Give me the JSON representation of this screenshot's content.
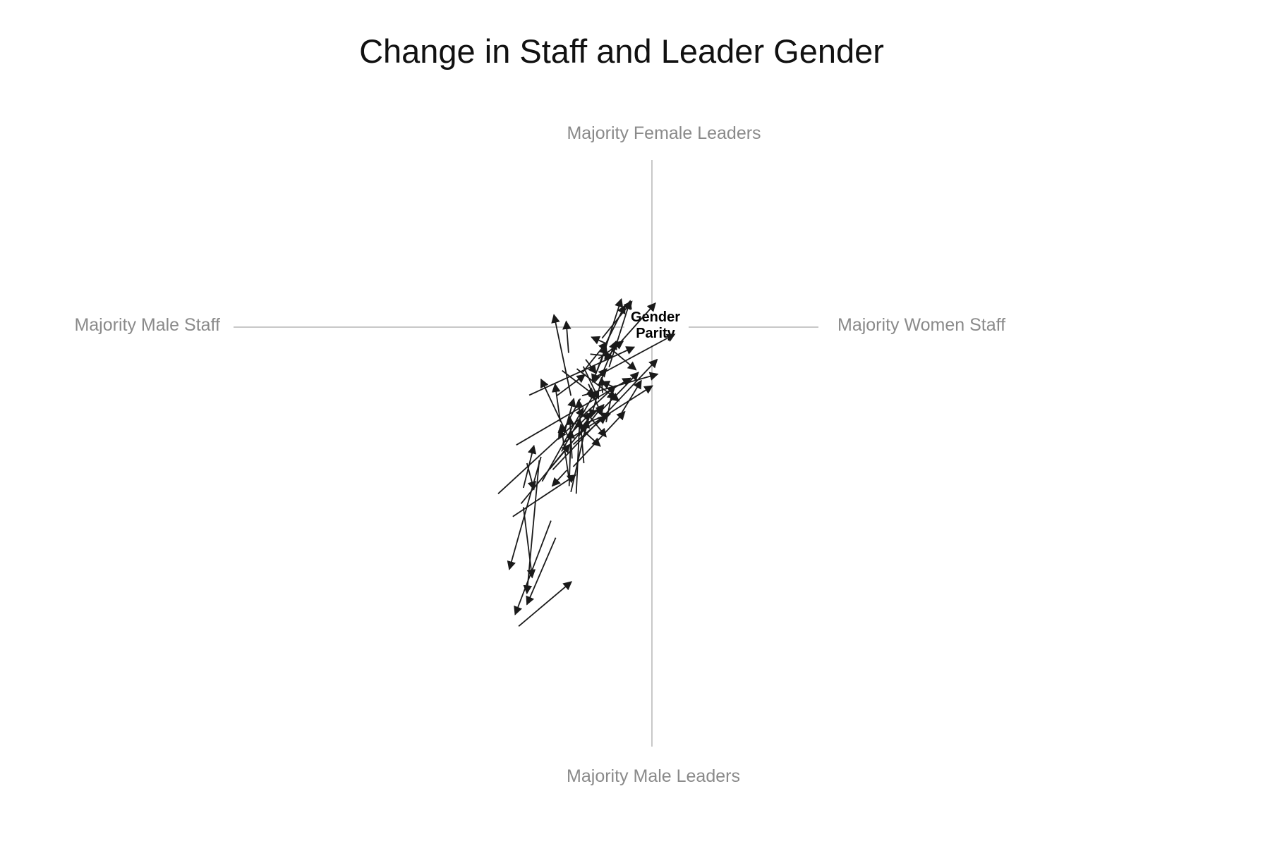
{
  "chart_data": {
    "type": "arrow-scatter",
    "title": "Change in Staff and Leader Gender",
    "center_label": [
      "Gender",
      "Parity"
    ],
    "axis_labels": {
      "top": "Majority Female Leaders",
      "bottom": "Majority Male Leaders",
      "left": "Majority Male Staff",
      "right": "Majority Women Staff"
    },
    "x_range": [
      -0.5,
      0.5
    ],
    "y_range": [
      -0.5,
      0.5
    ],
    "grid": false,
    "colors": {
      "arrows": "#1a1a1a",
      "axes": "#c8c8c8",
      "axis_labels": "#8a8a8a"
    },
    "arrows": [
      {
        "from": [
          -0.227,
          -0.51
        ],
        "to": [
          -0.137,
          -0.434
        ]
      },
      {
        "from": [
          -0.172,
          -0.33
        ],
        "to": [
          -0.233,
          -0.49
        ]
      },
      {
        "from": [
          -0.164,
          -0.359
        ],
        "to": [
          -0.213,
          -0.473
        ]
      },
      {
        "from": [
          -0.219,
          -0.307
        ],
        "to": [
          -0.204,
          -0.427
        ]
      },
      {
        "from": [
          -0.189,
          -0.221
        ],
        "to": [
          -0.243,
          -0.413
        ]
      },
      {
        "from": [
          -0.192,
          -0.227
        ],
        "to": [
          -0.213,
          -0.454
        ]
      },
      {
        "from": [
          -0.219,
          -0.274
        ],
        "to": [
          -0.201,
          -0.202
        ]
      },
      {
        "from": [
          -0.213,
          -0.232
        ],
        "to": [
          -0.201,
          -0.277
        ]
      },
      {
        "from": [
          -0.237,
          -0.323
        ],
        "to": [
          -0.13,
          -0.252
        ]
      },
      {
        "from": [
          -0.223,
          -0.301
        ],
        "to": [
          -0.14,
          -0.2
        ]
      },
      {
        "from": [
          -0.187,
          -0.263
        ],
        "to": [
          -0.117,
          -0.138
        ]
      },
      {
        "from": [
          -0.174,
          -0.242
        ],
        "to": [
          -0.11,
          -0.165
        ]
      },
      {
        "from": [
          -0.154,
          -0.212
        ],
        "to": [
          -0.096,
          -0.109
        ]
      },
      {
        "from": [
          -0.145,
          -0.244
        ],
        "to": [
          -0.17,
          -0.271
        ]
      },
      {
        "from": [
          -0.142,
          -0.254
        ],
        "to": [
          -0.155,
          -0.166
        ]
      },
      {
        "from": [
          -0.141,
          -0.271
        ],
        "to": [
          -0.138,
          -0.176
        ]
      },
      {
        "from": [
          -0.136,
          -0.224
        ],
        "to": [
          -0.14,
          -0.153
        ]
      },
      {
        "from": [
          -0.138,
          -0.281
        ],
        "to": [
          -0.11,
          -0.158
        ]
      },
      {
        "from": [
          -0.129,
          -0.284
        ],
        "to": [
          -0.123,
          -0.157
        ]
      },
      {
        "from": [
          -0.116,
          -0.232
        ],
        "to": [
          -0.125,
          -0.124
        ]
      },
      {
        "from": [
          -0.162,
          -0.117
        ],
        "to": [
          -0.114,
          -0.081
        ]
      },
      {
        "from": [
          -0.156,
          -0.162
        ],
        "to": [
          -0.165,
          -0.097
        ]
      },
      {
        "from": [
          -0.143,
          -0.186
        ],
        "to": [
          -0.189,
          -0.089
        ]
      },
      {
        "from": [
          -0.122,
          -0.122
        ],
        "to": [
          -0.159,
          -0.191
        ]
      },
      {
        "from": [
          -0.148,
          -0.176
        ],
        "to": [
          -0.133,
          -0.122
        ]
      },
      {
        "from": [
          -0.14,
          -0.183
        ],
        "to": [
          -0.104,
          -0.146
        ]
      },
      {
        "from": [
          -0.134,
          -0.2
        ],
        "to": [
          -0.078,
          -0.151
        ]
      },
      {
        "from": [
          -0.132,
          -0.163
        ],
        "to": [
          -0.088,
          -0.203
        ]
      },
      {
        "from": [
          -0.124,
          -0.185
        ],
        "to": [
          -0.082,
          -0.132
        ]
      },
      {
        "from": [
          -0.113,
          -0.144
        ],
        "to": [
          -0.078,
          -0.187
        ]
      },
      {
        "from": [
          -0.114,
          -0.164
        ],
        "to": [
          -0.071,
          -0.148
        ]
      },
      {
        "from": [
          -0.153,
          -0.074
        ],
        "to": [
          -0.097,
          -0.117
        ]
      },
      {
        "from": [
          -0.108,
          -0.097
        ],
        "to": [
          -0.085,
          -0.151
        ]
      },
      {
        "from": [
          -0.117,
          -0.067
        ],
        "to": [
          -0.091,
          -0.122
        ]
      },
      {
        "from": [
          -0.142,
          -0.044
        ],
        "to": [
          -0.146,
          0.01
        ]
      },
      {
        "from": [
          -0.138,
          -0.117
        ],
        "to": [
          -0.167,
          0.021
        ]
      },
      {
        "from": [
          -0.209,
          -0.116
        ],
        "to": [
          -0.03,
          -0.034
        ]
      },
      {
        "from": [
          -0.118,
          -0.077
        ],
        "to": [
          -0.077,
          -0.026
        ]
      },
      {
        "from": [
          -0.105,
          -0.046
        ],
        "to": [
          -0.067,
          -0.05
        ]
      },
      {
        "from": [
          -0.113,
          -0.055
        ],
        "to": [
          -0.095,
          -0.079
        ]
      },
      {
        "from": [
          -0.091,
          -0.054
        ],
        "to": [
          -0.049,
          -0.024
        ]
      },
      {
        "from": [
          -0.081,
          -0.033
        ],
        "to": [
          -0.046,
          0.037
        ]
      },
      {
        "from": [
          -0.073,
          -0.068
        ],
        "to": [
          -0.037,
          0.045
        ]
      },
      {
        "from": [
          -0.084,
          -0.112
        ],
        "to": [
          -0.086,
          -0.086
        ]
      },
      {
        "from": [
          -0.098,
          -0.094
        ],
        "to": [
          -0.077,
          -0.071
        ]
      },
      {
        "from": [
          -0.088,
          -0.063
        ],
        "to": [
          -0.052,
          0.048
        ]
      },
      {
        "from": [
          -0.086,
          -0.083
        ],
        "to": [
          -0.061,
          -0.024
        ]
      },
      {
        "from": [
          -0.093,
          -0.074
        ],
        "to": [
          -0.078,
          -0.032
        ]
      },
      {
        "from": [
          -0.231,
          -0.201
        ],
        "to": [
          -0.036,
          -0.087
        ]
      },
      {
        "from": [
          -0.262,
          -0.284
        ],
        "to": [
          -0.062,
          -0.1
        ]
      },
      {
        "from": [
          -0.169,
          -0.243
        ],
        "to": [
          0.009,
          -0.055
        ]
      },
      {
        "from": [
          -0.152,
          -0.198
        ],
        "to": [
          0.001,
          -0.1
        ]
      },
      {
        "from": [
          -0.134,
          -0.238
        ],
        "to": [
          -0.046,
          -0.144
        ]
      },
      {
        "from": [
          -0.119,
          -0.117
        ],
        "to": [
          0.01,
          -0.08
        ]
      },
      {
        "from": [
          -0.078,
          -0.162
        ],
        "to": [
          -0.067,
          -0.108
        ]
      },
      {
        "from": [
          -0.086,
          -0.142
        ],
        "to": [
          -0.023,
          -0.077
        ]
      },
      {
        "from": [
          -0.128,
          -0.071
        ],
        "to": [
          -0.056,
          -0.126
        ]
      },
      {
        "from": [
          -0.083,
          -0.081
        ],
        "to": [
          -0.104,
          -0.154
        ]
      },
      {
        "from": [
          -0.08,
          -0.027
        ],
        "to": [
          -0.103,
          -0.017
        ]
      },
      {
        "from": [
          -0.086,
          -0.054
        ],
        "to": [
          -0.101,
          -0.094
        ]
      },
      {
        "from": [
          -0.063,
          -0.103
        ],
        "to": [
          -0.086,
          -0.093
        ]
      },
      {
        "from": [
          -0.1,
          -0.087
        ],
        "to": [
          0.039,
          -0.012
        ]
      },
      {
        "from": [
          -0.07,
          -0.037
        ],
        "to": [
          -0.027,
          -0.073
        ]
      },
      {
        "from": [
          -0.076,
          -0.051
        ],
        "to": [
          0.006,
          0.041
        ]
      },
      {
        "from": [
          -0.085,
          -0.019
        ],
        "to": [
          -0.034,
          0.044
        ]
      },
      {
        "from": [
          -0.055,
          -0.152
        ],
        "to": [
          -0.018,
          -0.091
        ]
      }
    ]
  }
}
